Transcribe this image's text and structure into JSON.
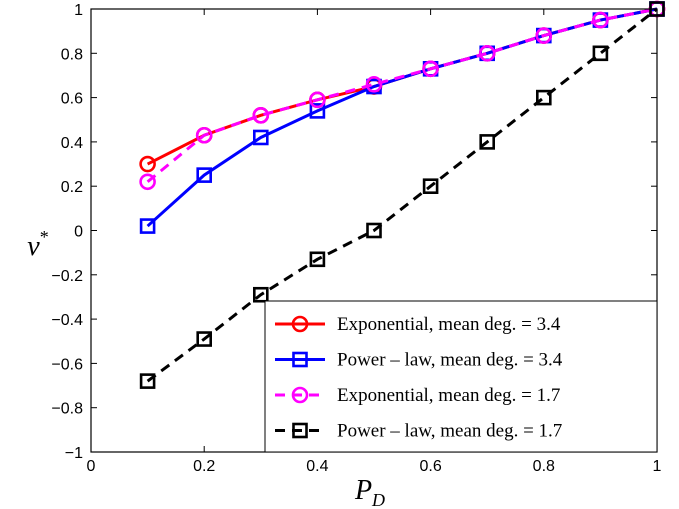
{
  "chart_data": {
    "type": "line",
    "title": "",
    "xlabel": "P",
    "xlabel_sub": "D",
    "ylabel": "v",
    "ylabel_sup": "*",
    "xlim": [
      0,
      1
    ],
    "ylim": [
      -1,
      1
    ],
    "xticks": [
      "0",
      "0.2",
      "0.4",
      "0.6",
      "0.8",
      "1"
    ],
    "yticks": [
      "−1",
      "−0.8",
      "−0.6",
      "−0.4",
      "−0.2",
      "0",
      "0.2",
      "0.4",
      "0.6",
      "0.8",
      "1"
    ],
    "grid": false,
    "legend_position": "bottom-right",
    "series": [
      {
        "name": "Exponential, mean deg. = 3.4",
        "color": "#ff0000",
        "line_style": "solid",
        "marker": "circle",
        "x": [
          0.1,
          0.2,
          0.3,
          0.4,
          0.5,
          0.6,
          0.7,
          0.8,
          0.9,
          1.0
        ],
        "y": [
          0.3,
          0.43,
          0.52,
          0.59,
          0.65,
          0.73,
          0.8,
          0.88,
          0.95,
          1.0
        ]
      },
      {
        "name": "Power – law, mean deg. = 3.4",
        "color": "#0000ff",
        "line_style": "solid",
        "marker": "square",
        "x": [
          0.1,
          0.2,
          0.3,
          0.4,
          0.5,
          0.6,
          0.7,
          0.8,
          0.9,
          1.0
        ],
        "y": [
          0.02,
          0.25,
          0.42,
          0.54,
          0.65,
          0.73,
          0.8,
          0.88,
          0.95,
          1.0
        ]
      },
      {
        "name": "Exponential, mean deg. = 1.7",
        "color": "#ff00ff",
        "line_style": "dashed",
        "marker": "circle",
        "x": [
          0.1,
          0.2,
          0.3,
          0.4,
          0.5,
          0.6,
          0.7,
          0.8,
          0.9,
          1.0
        ],
        "y": [
          0.22,
          0.43,
          0.52,
          0.59,
          0.66,
          0.73,
          0.8,
          0.88,
          0.95,
          1.0
        ]
      },
      {
        "name": "Power – law, mean deg. = 1.7",
        "color": "#000000",
        "line_style": "dashed",
        "marker": "square",
        "x": [
          0.1,
          0.2,
          0.3,
          0.4,
          0.5,
          0.6,
          0.7,
          0.8,
          0.9,
          1.0
        ],
        "y": [
          -0.68,
          -0.49,
          -0.29,
          -0.13,
          0.0,
          0.2,
          0.4,
          0.6,
          0.8,
          1.0
        ]
      }
    ]
  }
}
